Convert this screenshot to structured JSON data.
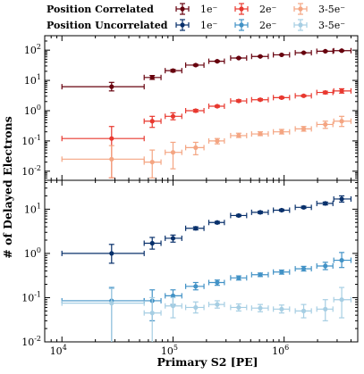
{
  "chart_data": [
    {
      "type": "scatter",
      "panel": "top",
      "title": "Position Correlated",
      "xlabel": "Primary S2 [PE]",
      "ylabel": "# of Delayed Electrons",
      "xscale": "log",
      "yscale": "log",
      "xlim": [
        7000,
        4600000
      ],
      "ylim": [
        0.005,
        300
      ],
      "x_ticks": [
        "10^4",
        "10^5",
        "10^6"
      ],
      "y_ticks": [
        "10^-2",
        "10^-1",
        "10^0",
        "10^1",
        "10^2"
      ],
      "series": [
        {
          "name": "1e⁻",
          "color": "#67000d",
          "points": [
            {
              "x": 28000,
              "xlo": 10000,
              "xhi": 55000,
              "y": 6.2,
              "ylo": 4.5,
              "yhi": 8.6
            },
            {
              "x": 65000,
              "xlo": 55000,
              "xhi": 78000,
              "y": 12.5,
              "ylo": 10.8,
              "yhi": 14.5
            },
            {
              "x": 100000,
              "xlo": 85000,
              "xhi": 120000,
              "y": 21,
              "ylo": 19,
              "yhi": 23
            },
            {
              "x": 160000,
              "xlo": 130000,
              "xhi": 190000,
              "y": 32,
              "ylo": 30,
              "yhi": 34
            },
            {
              "x": 250000,
              "xlo": 210000,
              "xhi": 290000,
              "y": 43,
              "ylo": 41,
              "yhi": 45
            },
            {
              "x": 390000,
              "xlo": 330000,
              "xhi": 460000,
              "y": 55,
              "ylo": 53,
              "yhi": 57
            },
            {
              "x": 610000,
              "xlo": 510000,
              "xhi": 720000,
              "y": 62,
              "ylo": 60,
              "yhi": 64
            },
            {
              "x": 950000,
              "xlo": 800000,
              "xhi": 1120000,
              "y": 70,
              "ylo": 68,
              "yhi": 72
            },
            {
              "x": 1500000,
              "xlo": 1260000,
              "xhi": 1760000,
              "y": 82,
              "ylo": 80,
              "yhi": 84
            },
            {
              "x": 2350000,
              "xlo": 1970000,
              "xhi": 2750000,
              "y": 92,
              "ylo": 89,
              "yhi": 95
            },
            {
              "x": 3300000,
              "xlo": 2800000,
              "xhi": 4000000,
              "y": 96,
              "ylo": 92,
              "yhi": 100
            }
          ]
        },
        {
          "name": "2e⁻",
          "color": "#e8382f",
          "points": [
            {
              "x": 28000,
              "xlo": 10000,
              "xhi": 55000,
              "y": 0.12,
              "ylo": 0.006,
              "yhi": 0.3
            },
            {
              "x": 65000,
              "xlo": 55000,
              "xhi": 78000,
              "y": 0.45,
              "ylo": 0.28,
              "yhi": 0.65
            },
            {
              "x": 100000,
              "xlo": 85000,
              "xhi": 120000,
              "y": 0.65,
              "ylo": 0.5,
              "yhi": 0.85
            },
            {
              "x": 160000,
              "xlo": 130000,
              "xhi": 190000,
              "y": 1.0,
              "ylo": 0.9,
              "yhi": 1.1
            },
            {
              "x": 250000,
              "xlo": 210000,
              "xhi": 290000,
              "y": 1.4,
              "ylo": 1.3,
              "yhi": 1.5
            },
            {
              "x": 390000,
              "xlo": 330000,
              "xhi": 460000,
              "y": 2.1,
              "ylo": 1.95,
              "yhi": 2.3
            },
            {
              "x": 610000,
              "xlo": 510000,
              "xhi": 720000,
              "y": 2.3,
              "ylo": 2.15,
              "yhi": 2.5
            },
            {
              "x": 950000,
              "xlo": 800000,
              "xhi": 1120000,
              "y": 2.7,
              "ylo": 2.5,
              "yhi": 2.9
            },
            {
              "x": 1500000,
              "xlo": 1260000,
              "xhi": 1760000,
              "y": 3.1,
              "ylo": 2.9,
              "yhi": 3.3
            },
            {
              "x": 2350000,
              "xlo": 1970000,
              "xhi": 2750000,
              "y": 4.0,
              "ylo": 3.6,
              "yhi": 4.4
            },
            {
              "x": 3300000,
              "xlo": 2800000,
              "xhi": 4000000,
              "y": 4.5,
              "ylo": 3.8,
              "yhi": 5.3
            }
          ]
        },
        {
          "name": "3-5e⁻",
          "color": "#f4a582",
          "points": [
            {
              "x": 28000,
              "xlo": 10000,
              "xhi": 55000,
              "y": 0.025,
              "ylo": 0.006,
              "yhi": 0.07
            },
            {
              "x": 65000,
              "xlo": 55000,
              "xhi": 78000,
              "y": 0.02,
              "ylo": 0.006,
              "yhi": 0.05
            },
            {
              "x": 100000,
              "xlo": 85000,
              "xhi": 120000,
              "y": 0.042,
              "ylo": 0.012,
              "yhi": 0.09
            },
            {
              "x": 160000,
              "xlo": 130000,
              "xhi": 190000,
              "y": 0.06,
              "ylo": 0.035,
              "yhi": 0.09
            },
            {
              "x": 250000,
              "xlo": 210000,
              "xhi": 290000,
              "y": 0.1,
              "ylo": 0.08,
              "yhi": 0.12
            },
            {
              "x": 390000,
              "xlo": 330000,
              "xhi": 460000,
              "y": 0.15,
              "ylo": 0.13,
              "yhi": 0.18
            },
            {
              "x": 610000,
              "xlo": 510000,
              "xhi": 720000,
              "y": 0.17,
              "ylo": 0.15,
              "yhi": 0.2
            },
            {
              "x": 950000,
              "xlo": 800000,
              "xhi": 1120000,
              "y": 0.2,
              "ylo": 0.17,
              "yhi": 0.24
            },
            {
              "x": 1500000,
              "xlo": 1260000,
              "xhi": 1760000,
              "y": 0.25,
              "ylo": 0.21,
              "yhi": 0.3
            },
            {
              "x": 2350000,
              "xlo": 1970000,
              "xhi": 2750000,
              "y": 0.35,
              "ylo": 0.26,
              "yhi": 0.45
            },
            {
              "x": 3300000,
              "xlo": 2800000,
              "xhi": 4000000,
              "y": 0.45,
              "ylo": 0.3,
              "yhi": 0.65
            }
          ]
        }
      ]
    },
    {
      "type": "scatter",
      "panel": "bottom",
      "title": "Position Uncorrelated",
      "xlabel": "Primary S2 [PE]",
      "ylabel": "# of Delayed Electrons",
      "xscale": "log",
      "yscale": "log",
      "xlim": [
        7000,
        4600000
      ],
      "ylim": [
        0.01,
        45
      ],
      "x_ticks": [
        "10^4",
        "10^5",
        "10^6"
      ],
      "y_ticks": [
        "10^-2",
        "10^-1",
        "10^0",
        "10^1"
      ],
      "series": [
        {
          "name": "1e⁻",
          "color": "#08306b",
          "points": [
            {
              "x": 28000,
              "xlo": 10000,
              "xhi": 55000,
              "y": 1.0,
              "ylo": 0.6,
              "yhi": 1.6
            },
            {
              "x": 65000,
              "xlo": 55000,
              "xhi": 78000,
              "y": 1.7,
              "ylo": 1.25,
              "yhi": 2.3
            },
            {
              "x": 100000,
              "xlo": 85000,
              "xhi": 120000,
              "y": 2.2,
              "ylo": 1.8,
              "yhi": 2.6
            },
            {
              "x": 160000,
              "xlo": 130000,
              "xhi": 190000,
              "y": 3.7,
              "ylo": 3.4,
              "yhi": 4.0
            },
            {
              "x": 250000,
              "xlo": 210000,
              "xhi": 290000,
              "y": 5.0,
              "ylo": 4.7,
              "yhi": 5.3
            },
            {
              "x": 390000,
              "xlo": 330000,
              "xhi": 460000,
              "y": 7.2,
              "ylo": 6.8,
              "yhi": 7.6
            },
            {
              "x": 610000,
              "xlo": 510000,
              "xhi": 720000,
              "y": 8.5,
              "ylo": 8.0,
              "yhi": 9.0
            },
            {
              "x": 950000,
              "xlo": 800000,
              "xhi": 1120000,
              "y": 9.5,
              "ylo": 9.0,
              "yhi": 10.0
            },
            {
              "x": 1500000,
              "xlo": 1260000,
              "xhi": 1760000,
              "y": 11,
              "ylo": 10.4,
              "yhi": 11.7
            },
            {
              "x": 2350000,
              "xlo": 1970000,
              "xhi": 2750000,
              "y": 13.5,
              "ylo": 12.5,
              "yhi": 14.5
            },
            {
              "x": 3300000,
              "xlo": 2800000,
              "xhi": 4000000,
              "y": 17,
              "ylo": 14.5,
              "yhi": 20
            }
          ]
        },
        {
          "name": "2e⁻",
          "color": "#4292c6",
          "points": [
            {
              "x": 28000,
              "xlo": 10000,
              "xhi": 55000,
              "y": 0.085,
              "ylo": 0.01,
              "yhi": 0.17
            },
            {
              "x": 65000,
              "xlo": 55000,
              "xhi": 78000,
              "y": 0.085,
              "ylo": 0.03,
              "yhi": 0.15
            },
            {
              "x": 100000,
              "xlo": 85000,
              "xhi": 120000,
              "y": 0.11,
              "ylo": 0.07,
              "yhi": 0.15
            },
            {
              "x": 160000,
              "xlo": 130000,
              "xhi": 190000,
              "y": 0.18,
              "ylo": 0.15,
              "yhi": 0.22
            },
            {
              "x": 250000,
              "xlo": 210000,
              "xhi": 290000,
              "y": 0.22,
              "ylo": 0.19,
              "yhi": 0.25
            },
            {
              "x": 390000,
              "xlo": 330000,
              "xhi": 460000,
              "y": 0.28,
              "ylo": 0.25,
              "yhi": 0.31
            },
            {
              "x": 610000,
              "xlo": 510000,
              "xhi": 720000,
              "y": 0.33,
              "ylo": 0.3,
              "yhi": 0.36
            },
            {
              "x": 950000,
              "xlo": 800000,
              "xhi": 1120000,
              "y": 0.38,
              "ylo": 0.34,
              "yhi": 0.42
            },
            {
              "x": 1500000,
              "xlo": 1260000,
              "xhi": 1760000,
              "y": 0.45,
              "ylo": 0.4,
              "yhi": 0.51
            },
            {
              "x": 2350000,
              "xlo": 1970000,
              "xhi": 2750000,
              "y": 0.52,
              "ylo": 0.43,
              "yhi": 0.63
            },
            {
              "x": 3300000,
              "xlo": 2800000,
              "xhi": 4000000,
              "y": 0.7,
              "ylo": 0.48,
              "yhi": 1.05
            }
          ]
        },
        {
          "name": "3-5e⁻",
          "color": "#a6cee3",
          "points": [
            {
              "x": 28000,
              "xlo": 10000,
              "xhi": 55000,
              "y": 0.075,
              "ylo": 0.01,
              "yhi": 0.16
            },
            {
              "x": 65000,
              "xlo": 55000,
              "xhi": 78000,
              "y": 0.045,
              "ylo": 0.01,
              "yhi": 0.1
            },
            {
              "x": 100000,
              "xlo": 85000,
              "xhi": 120000,
              "y": 0.065,
              "ylo": 0.035,
              "yhi": 0.1
            },
            {
              "x": 160000,
              "xlo": 130000,
              "xhi": 190000,
              "y": 0.06,
              "ylo": 0.045,
              "yhi": 0.08
            },
            {
              "x": 250000,
              "xlo": 210000,
              "xhi": 290000,
              "y": 0.07,
              "ylo": 0.058,
              "yhi": 0.085
            },
            {
              "x": 390000,
              "xlo": 330000,
              "xhi": 460000,
              "y": 0.06,
              "ylo": 0.05,
              "yhi": 0.072
            },
            {
              "x": 610000,
              "xlo": 510000,
              "xhi": 720000,
              "y": 0.058,
              "ylo": 0.048,
              "yhi": 0.07
            },
            {
              "x": 950000,
              "xlo": 800000,
              "xhi": 1120000,
              "y": 0.055,
              "ylo": 0.045,
              "yhi": 0.068
            },
            {
              "x": 1500000,
              "xlo": 1260000,
              "xhi": 1760000,
              "y": 0.05,
              "ylo": 0.035,
              "yhi": 0.07
            },
            {
              "x": 2350000,
              "xlo": 1970000,
              "xhi": 2750000,
              "y": 0.055,
              "ylo": 0.03,
              "yhi": 0.09
            },
            {
              "x": 3300000,
              "xlo": 2800000,
              "xhi": 4000000,
              "y": 0.09,
              "ylo": 0.035,
              "yhi": 0.17
            }
          ]
        }
      ]
    }
  ],
  "legend": {
    "row1_title": "Position Correlated",
    "row2_title": "Position Uncorrelated",
    "row1_labels": [
      "1e⁻",
      "2e⁻",
      "3-5e⁻"
    ],
    "row2_labels": [
      "1e⁻",
      "2e⁻",
      "3-5e⁻"
    ],
    "placement": "top"
  },
  "axes": {
    "xlabel": "Primary S2 [PE]",
    "ylabel": "# of Delayed Electrons"
  }
}
